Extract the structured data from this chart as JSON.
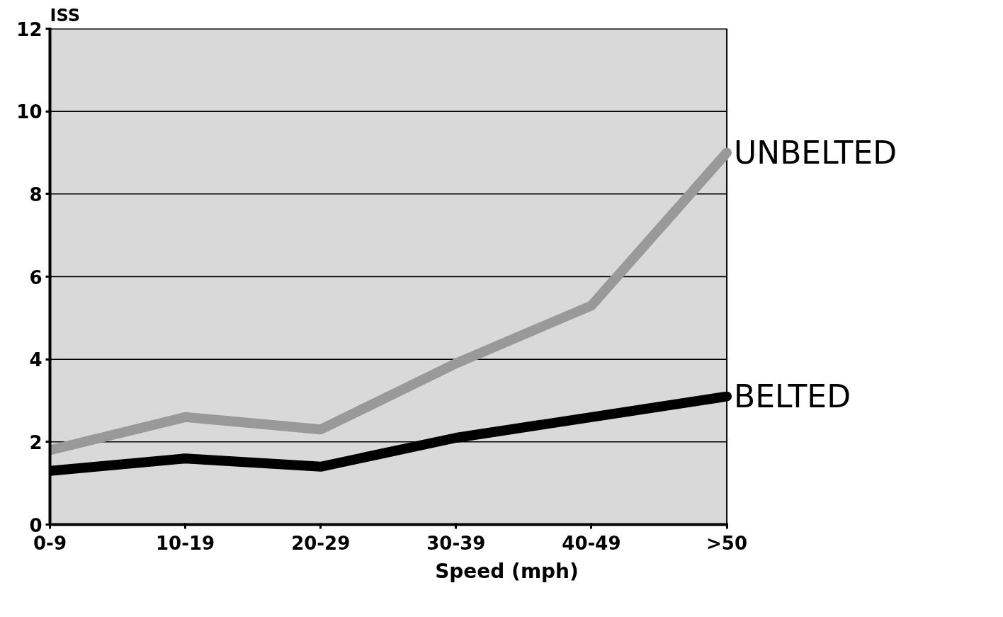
{
  "chart_data": {
    "type": "line",
    "ylabel": "ISS",
    "xlabel": "Speed (mph)",
    "categories": [
      "0-9",
      "10-19",
      "20-29",
      "30-39",
      "40-49",
      ">50"
    ],
    "series": [
      {
        "name": "UNBELTED",
        "color": "#999999",
        "values": [
          1.8,
          2.6,
          2.3,
          3.9,
          5.3,
          9.0
        ]
      },
      {
        "name": "BELTED",
        "color": "#000000",
        "values": [
          1.3,
          1.6,
          1.4,
          2.1,
          2.6,
          3.1
        ]
      }
    ],
    "ylim": [
      0,
      12
    ],
    "yticks": [
      0,
      2,
      4,
      6,
      8,
      10,
      12
    ],
    "grid": "y",
    "marker": "none",
    "line_style": "solid"
  }
}
